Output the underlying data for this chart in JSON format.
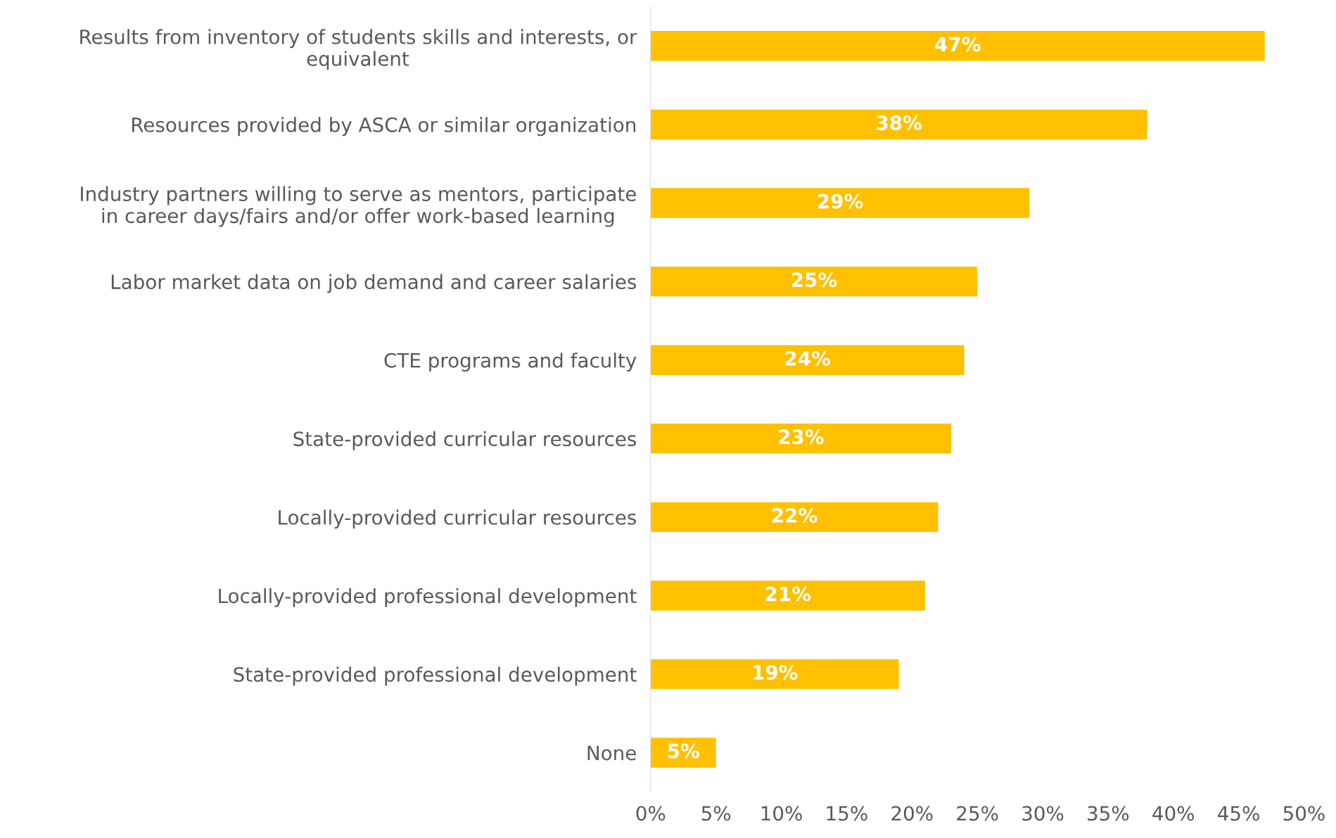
{
  "chart_data": {
    "type": "bar",
    "orientation": "horizontal",
    "categories": [
      "Results from inventory of students skills and interests, or\nequivalent",
      "Resources provided by ASCA or similar organization",
      "Industry partners willing to serve as mentors, participate\nin career days/fairs and/or offer work-based learning",
      "Labor market data on job demand and career salaries",
      "CTE programs and faculty",
      "State-provided curricular resources",
      "Locally-provided curricular resources",
      "Locally-provided professional development",
      "State-provided professional development",
      "None"
    ],
    "values": [
      47,
      38,
      29,
      25,
      24,
      23,
      22,
      21,
      19,
      5
    ],
    "value_labels": [
      "47%",
      "38%",
      "29%",
      "25%",
      "24%",
      "23%",
      "22%",
      "21%",
      "19%",
      "5%"
    ],
    "color": "#ffc000",
    "xlim": [
      0,
      50
    ],
    "xticks": [
      {
        "value": 0,
        "label": "0%"
      },
      {
        "value": 5,
        "label": "5%"
      },
      {
        "value": 10,
        "label": "10%"
      },
      {
        "value": 15,
        "label": "15%"
      },
      {
        "value": 20,
        "label": "20%"
      },
      {
        "value": 25,
        "label": "25%"
      },
      {
        "value": 30,
        "label": "30%"
      },
      {
        "value": 35,
        "label": "35%"
      },
      {
        "value": 40,
        "label": "40%"
      },
      {
        "value": 45,
        "label": "45%"
      },
      {
        "value": 50,
        "label": "50%"
      }
    ],
    "grid": false,
    "legend": false
  }
}
